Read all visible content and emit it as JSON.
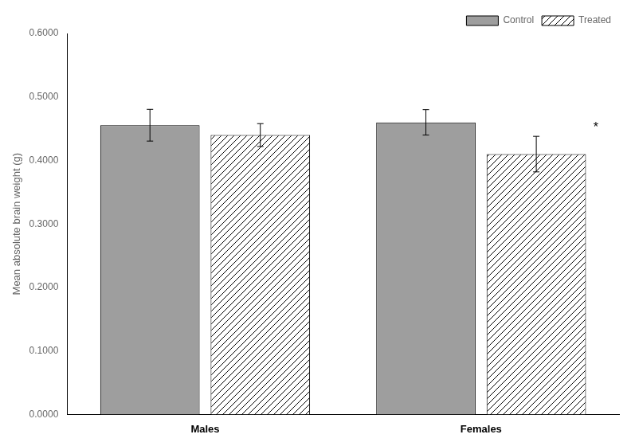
{
  "chart_data": {
    "type": "bar",
    "categories": [
      "Males",
      "Females"
    ],
    "series": [
      {
        "name": "Control",
        "color": "#9E9E9E",
        "values": [
          0.4555,
          0.46
        ],
        "errors": [
          0.025,
          0.02
        ]
      },
      {
        "name": "Treated",
        "color": "#FFFFFF",
        "values": [
          0.44,
          0.41
        ],
        "errors": [
          0.018,
          0.028
        ]
      }
    ],
    "ylabel": "Mean absolute brain weight (g)",
    "ylim": [
      0.0,
      0.6
    ],
    "yticks": [
      {
        "value": 0.0,
        "label": "0.0000"
      },
      {
        "value": 0.1,
        "label": "0.1000"
      },
      {
        "value": 0.2,
        "label": "0.2000"
      },
      {
        "value": 0.3,
        "label": "0.3000"
      },
      {
        "value": 0.4,
        "label": "0.4000"
      },
      {
        "value": 0.5,
        "label": "0.5000"
      },
      {
        "value": 0.6,
        "label": "0.6000"
      }
    ],
    "annotations": [
      {
        "text": "*",
        "category": "Females",
        "series": "Treated"
      }
    ],
    "legend": "upper right",
    "grid": false
  }
}
